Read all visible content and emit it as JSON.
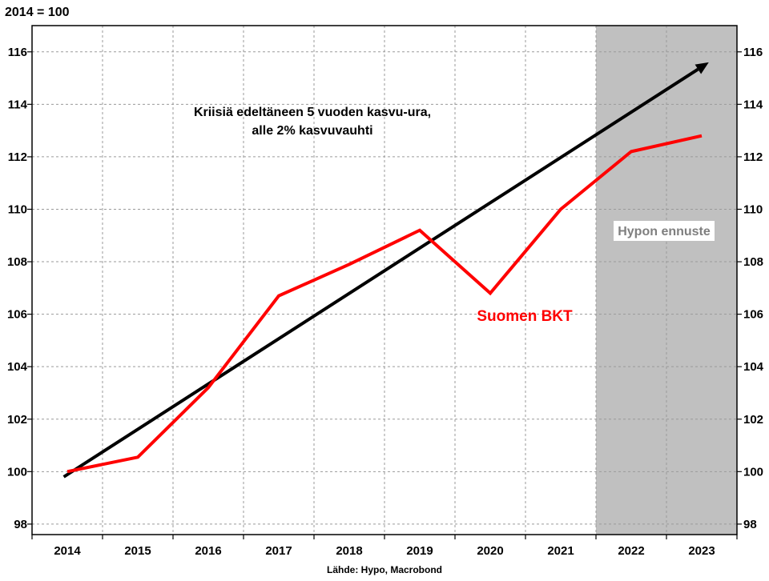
{
  "chart_data": {
    "type": "line",
    "unit_label": "2014 = 100",
    "source": "Lähde: Hypo, Macrobond",
    "x": [
      "2014",
      "2015",
      "2016",
      "2017",
      "2018",
      "2019",
      "2020",
      "2021",
      "2022",
      "2023"
    ],
    "ylim": [
      97.6,
      117.0
    ],
    "yticks": [
      98,
      100,
      102,
      104,
      106,
      108,
      110,
      112,
      114,
      116
    ],
    "grid": true,
    "series": [
      {
        "name": "Suomen BKT",
        "color": "#ff0000",
        "values": [
          100.0,
          100.55,
          103.2,
          106.7,
          107.9,
          109.2,
          106.8,
          110.0,
          112.2,
          112.8
        ]
      }
    ],
    "trend_arrow": {
      "color": "#000000",
      "start": {
        "x": 2013.95,
        "y": 99.8
      },
      "end": {
        "x": 2023.1,
        "y": 115.6
      }
    },
    "annotations": {
      "trend_text_line1": "Kriisiä edeltäneen 5 vuoden kasvu-ura,",
      "trend_text_line2": "alle 2% kasvuvauhti",
      "forecast_label": "Hypon ennuste"
    },
    "forecast_shading": {
      "from": 2021.5,
      "to": 2023.5,
      "color": "#c0c0c0"
    }
  }
}
